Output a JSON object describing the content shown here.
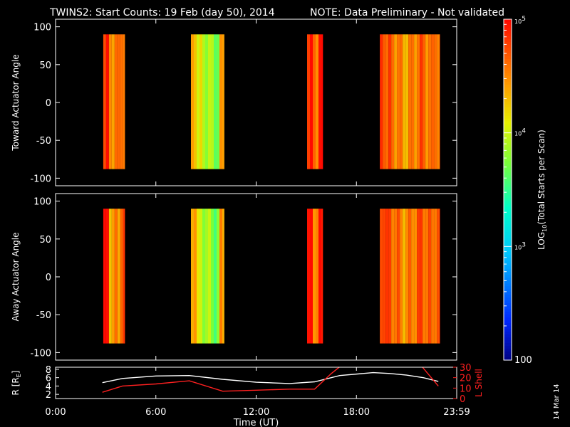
{
  "title": {
    "main": "TWINS2: Start Counts: 19 Feb (day  50), 2014",
    "note": "NOTE: Data Preliminary - Not validated",
    "note_color": "#ff2020"
  },
  "stamp": "14 Mar 14",
  "chart_data": [
    {
      "type": "heatmap",
      "panel": "toward",
      "ylabel": "Toward Actuator Angle",
      "ylim": [
        -110,
        110
      ],
      "yticks": [
        -100,
        -50,
        0,
        50,
        100
      ],
      "xlim": [
        0,
        24
      ],
      "angle_range": [
        -88,
        90
      ],
      "blocks": [
        {
          "start": 2.85,
          "end": 4.15,
          "level": 4.45,
          "edge_level": 4.75
        },
        {
          "start": 8.1,
          "end": 10.1,
          "level": 3.9,
          "edge_level": 4.4
        },
        {
          "start": 15.05,
          "end": 16.0,
          "level": 4.55,
          "edge_level": 4.85
        },
        {
          "start": 19.4,
          "end": 23.0,
          "level": 4.55,
          "edge_level": 4.8
        }
      ]
    },
    {
      "type": "heatmap",
      "panel": "away",
      "ylabel": "Away Actuator Angle",
      "ylim": [
        -110,
        110
      ],
      "yticks": [
        -100,
        -50,
        0,
        50,
        100
      ],
      "xlim": [
        0,
        24
      ],
      "angle_range": [
        -88,
        90
      ],
      "blocks": [
        {
          "start": 2.85,
          "end": 4.15,
          "level": 4.35,
          "edge_level": 4.85
        },
        {
          "start": 8.1,
          "end": 10.1,
          "level": 3.85,
          "edge_level": 4.5
        },
        {
          "start": 15.05,
          "end": 16.0,
          "level": 4.5,
          "edge_level": 4.85
        },
        {
          "start": 19.4,
          "end": 23.0,
          "level": 4.6,
          "edge_level": 4.85
        }
      ]
    },
    {
      "type": "line",
      "panel": "orbit",
      "xlabel": "Time (UT)",
      "x_ticklabels": [
        "0:00",
        "6:00",
        "12:00",
        "18:00",
        "23:59"
      ],
      "x_tickvalues": [
        0,
        6,
        12,
        18,
        24
      ],
      "ylabel_left": "R [R",
      "ylabel_left_sub": "E",
      "ylabel_left_close": "]",
      "ylim_left": [
        1,
        8.5
      ],
      "yticks_left": [
        2,
        4,
        6,
        8
      ],
      "ylabel_right": "L Shell",
      "ylim_right": [
        0,
        30
      ],
      "yticks_right": [
        0,
        10,
        20,
        30
      ],
      "series": [
        {
          "axis": "left",
          "color": "#ffffff",
          "x": [
            2.8,
            4.0,
            6.0,
            8.0,
            10.0,
            12.0,
            14.0,
            15.5,
            17.0,
            19.0,
            20.0,
            21.0,
            22.0,
            22.9
          ],
          "y": [
            4.8,
            5.8,
            6.4,
            6.5,
            5.6,
            4.9,
            4.6,
            5.0,
            6.5,
            7.2,
            7.0,
            6.6,
            6.0,
            5.1
          ]
        },
        {
          "axis": "right",
          "color": "#ff2020",
          "x": [
            2.8,
            4.0,
            6.0,
            8.0,
            10.0,
            12.0,
            14.0,
            15.5,
            16.5,
            17.05
          ],
          "y": [
            6,
            12,
            14,
            17,
            7,
            8,
            9,
            9,
            24,
            31
          ]
        },
        {
          "axis": "right",
          "color": "#ff2020",
          "x": [
            21.9,
            22.9
          ],
          "y": [
            31,
            12
          ]
        }
      ]
    }
  ],
  "colorbar": {
    "title": "LOG",
    "title_sub": "10",
    "title_rest": "(Total Starts per Scan)",
    "min_level": 2,
    "max_level": 5,
    "tick_labels": [
      {
        "level": 5,
        "text": "10",
        "sup": "5"
      },
      {
        "level": 4,
        "text": "10",
        "sup": "4"
      },
      {
        "level": 3,
        "text": "10",
        "sup": "3"
      },
      {
        "level": 2,
        "text": "100",
        "sup": ""
      }
    ]
  }
}
